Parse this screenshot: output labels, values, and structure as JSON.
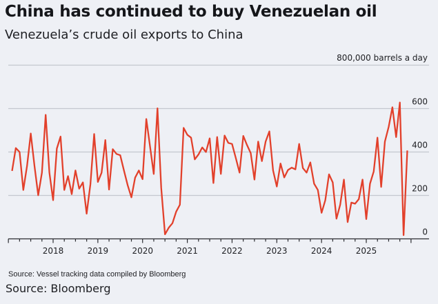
{
  "chart_data": {
    "type": "line",
    "title": "China has continued to buy Venezuelan oil",
    "subtitle": "Venezuela’s crude oil exports to China",
    "unit_label": "800,000 barrels a day",
    "ylim": [
      0,
      800
    ],
    "yticks": [
      {
        "value": 600,
        "label": "600"
      },
      {
        "value": 400,
        "label": "400"
      },
      {
        "value": 200,
        "label": "200"
      },
      {
        "value": 0,
        "label": "0"
      }
    ],
    "xticks": [
      "2018",
      "2019",
      "2020",
      "2021",
      "2022",
      "2023",
      "2024",
      "2025"
    ],
    "x_start": "2017-02",
    "x_frequency": "monthly",
    "grid": true,
    "line_color": "#e2402b",
    "values": [
      313,
      418,
      400,
      225,
      336,
      485,
      336,
      201,
      305,
      571,
      305,
      178,
      416,
      471,
      225,
      289,
      206,
      315,
      231,
      260,
      116,
      252,
      483,
      262,
      305,
      455,
      227,
      413,
      391,
      385,
      315,
      247,
      191,
      282,
      315,
      275,
      552,
      426,
      299,
      601,
      236,
      21,
      51,
      72,
      125,
      157,
      511,
      479,
      466,
      366,
      389,
      421,
      400,
      463,
      257,
      469,
      299,
      476,
      442,
      437,
      373,
      305,
      474,
      432,
      395,
      273,
      448,
      358,
      448,
      495,
      315,
      241,
      347,
      283,
      317,
      328,
      320,
      437,
      326,
      305,
      352,
      254,
      225,
      120,
      178,
      297,
      260,
      93,
      157,
      273,
      77,
      167,
      162,
      183,
      273,
      91,
      254,
      310,
      466,
      239,
      448,
      516,
      606,
      469,
      628,
      17,
      407
    ]
  },
  "footer": {
    "note": "Source: Vessel tracking data compiled by Bloomberg",
    "source": "Source: Bloomberg"
  }
}
